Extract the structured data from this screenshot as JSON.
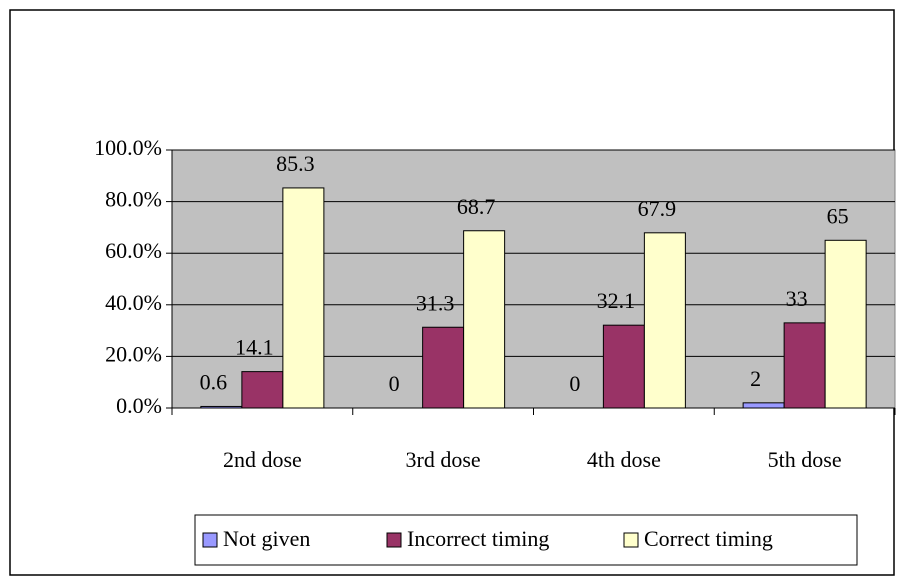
{
  "chart_data": {
    "type": "bar",
    "categories": [
      "2nd dose",
      "3rd dose",
      "4th dose",
      "5th dose"
    ],
    "series": [
      {
        "name": "Not given",
        "color": "#9999ff",
        "values": [
          0.6,
          0,
          0,
          2
        ]
      },
      {
        "name": "Incorrect timing",
        "color": "#993366",
        "values": [
          14.1,
          31.3,
          32.1,
          33
        ]
      },
      {
        "name": "Correct timing",
        "color": "#ffffcc",
        "values": [
          85.3,
          68.7,
          67.9,
          65
        ]
      }
    ],
    "ylim": [
      0,
      100
    ],
    "yticks": [
      {
        "value": 0,
        "label": "0.0%"
      },
      {
        "value": 20,
        "label": "20.0%"
      },
      {
        "value": 40,
        "label": "40.0%"
      },
      {
        "value": 60,
        "label": "60.0%"
      },
      {
        "value": 80,
        "label": "80.0%"
      },
      {
        "value": 100,
        "label": "100.0%"
      }
    ],
    "grid": true,
    "legend": "bottom",
    "plot_background": "#c0c0c0"
  }
}
